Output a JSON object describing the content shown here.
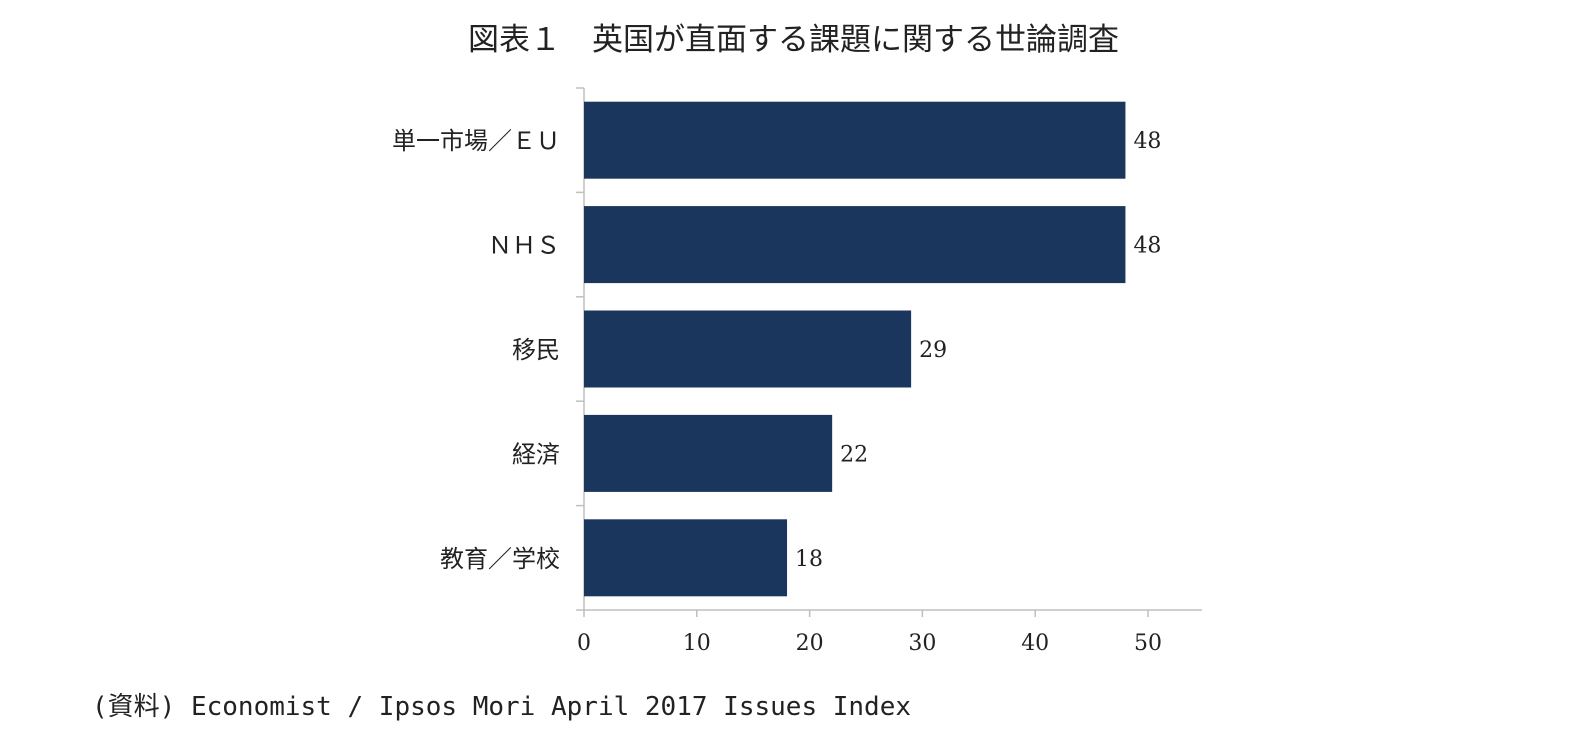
{
  "title": "図表１　英国が直面する課題に関する世論調査",
  "source": "(資料) Economist / Ipsos Mori April 2017 Issues Index",
  "chart_data": {
    "type": "bar",
    "orientation": "horizontal",
    "title": "図表１　英国が直面する課題に関する世論調査",
    "categories": [
      "単一市場／ＥＵ",
      "ＮＨＳ",
      "移民",
      "経済",
      "教育／学校"
    ],
    "values": [
      48,
      48,
      29,
      22,
      18
    ],
    "data_labels": [
      "48",
      "48",
      "29",
      "22",
      "18"
    ],
    "xlim": [
      0,
      55
    ],
    "xticks": [
      0,
      10,
      20,
      30,
      40,
      50
    ],
    "xtick_labels": [
      "0",
      "10",
      "20",
      "30",
      "40",
      "50"
    ],
    "grid": false,
    "legend": "none",
    "bar_color": "#1b365d",
    "axis_color": "#bfbfbf"
  }
}
